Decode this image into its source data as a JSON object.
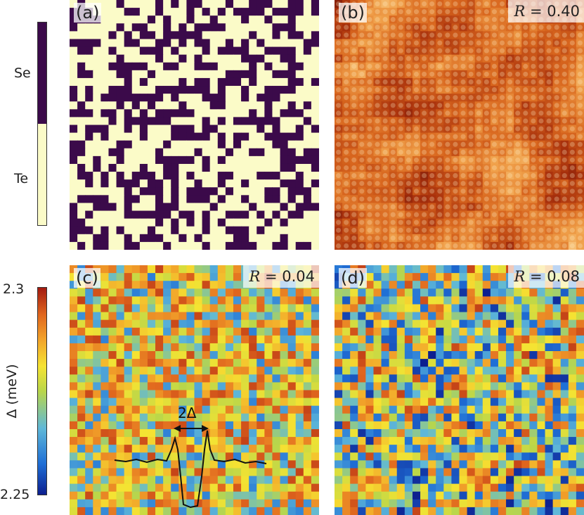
{
  "colorbar_composition": {
    "top_label": "Se",
    "bottom_label": "Te",
    "top_color": "#3b0a4a",
    "bottom_color": "#fbfbc8"
  },
  "colorbar_gap": {
    "axis_label": "Δ (meV)",
    "max_label": "2.3",
    "min_label": "2.25",
    "max": 2.3,
    "min": 2.25,
    "stops": [
      "#0d1f8f",
      "#1f6fd6",
      "#5fb8d8",
      "#b9d64a",
      "#f5e332",
      "#f2a32a",
      "#e0661e",
      "#a31a10"
    ]
  },
  "panels": {
    "a": {
      "label": "(a)"
    },
    "b": {
      "label": "(b)",
      "r_label": "R",
      "r_value": "= 0.40"
    },
    "c": {
      "label": "(c)",
      "r_label": "R",
      "r_value": "= 0.04",
      "annotation": "2Δ"
    },
    "d": {
      "label": "(d)",
      "r_label": "R",
      "r_value": "= 0.08"
    }
  },
  "chart_data": {
    "type": "heatmap",
    "grid_size": 32,
    "composition_labels": [
      "Se",
      "Te"
    ],
    "gap_range_meV": [
      2.25,
      2.3
    ],
    "correlations": {
      "b": 0.4,
      "c": 0.04,
      "d": 0.08
    }
  }
}
